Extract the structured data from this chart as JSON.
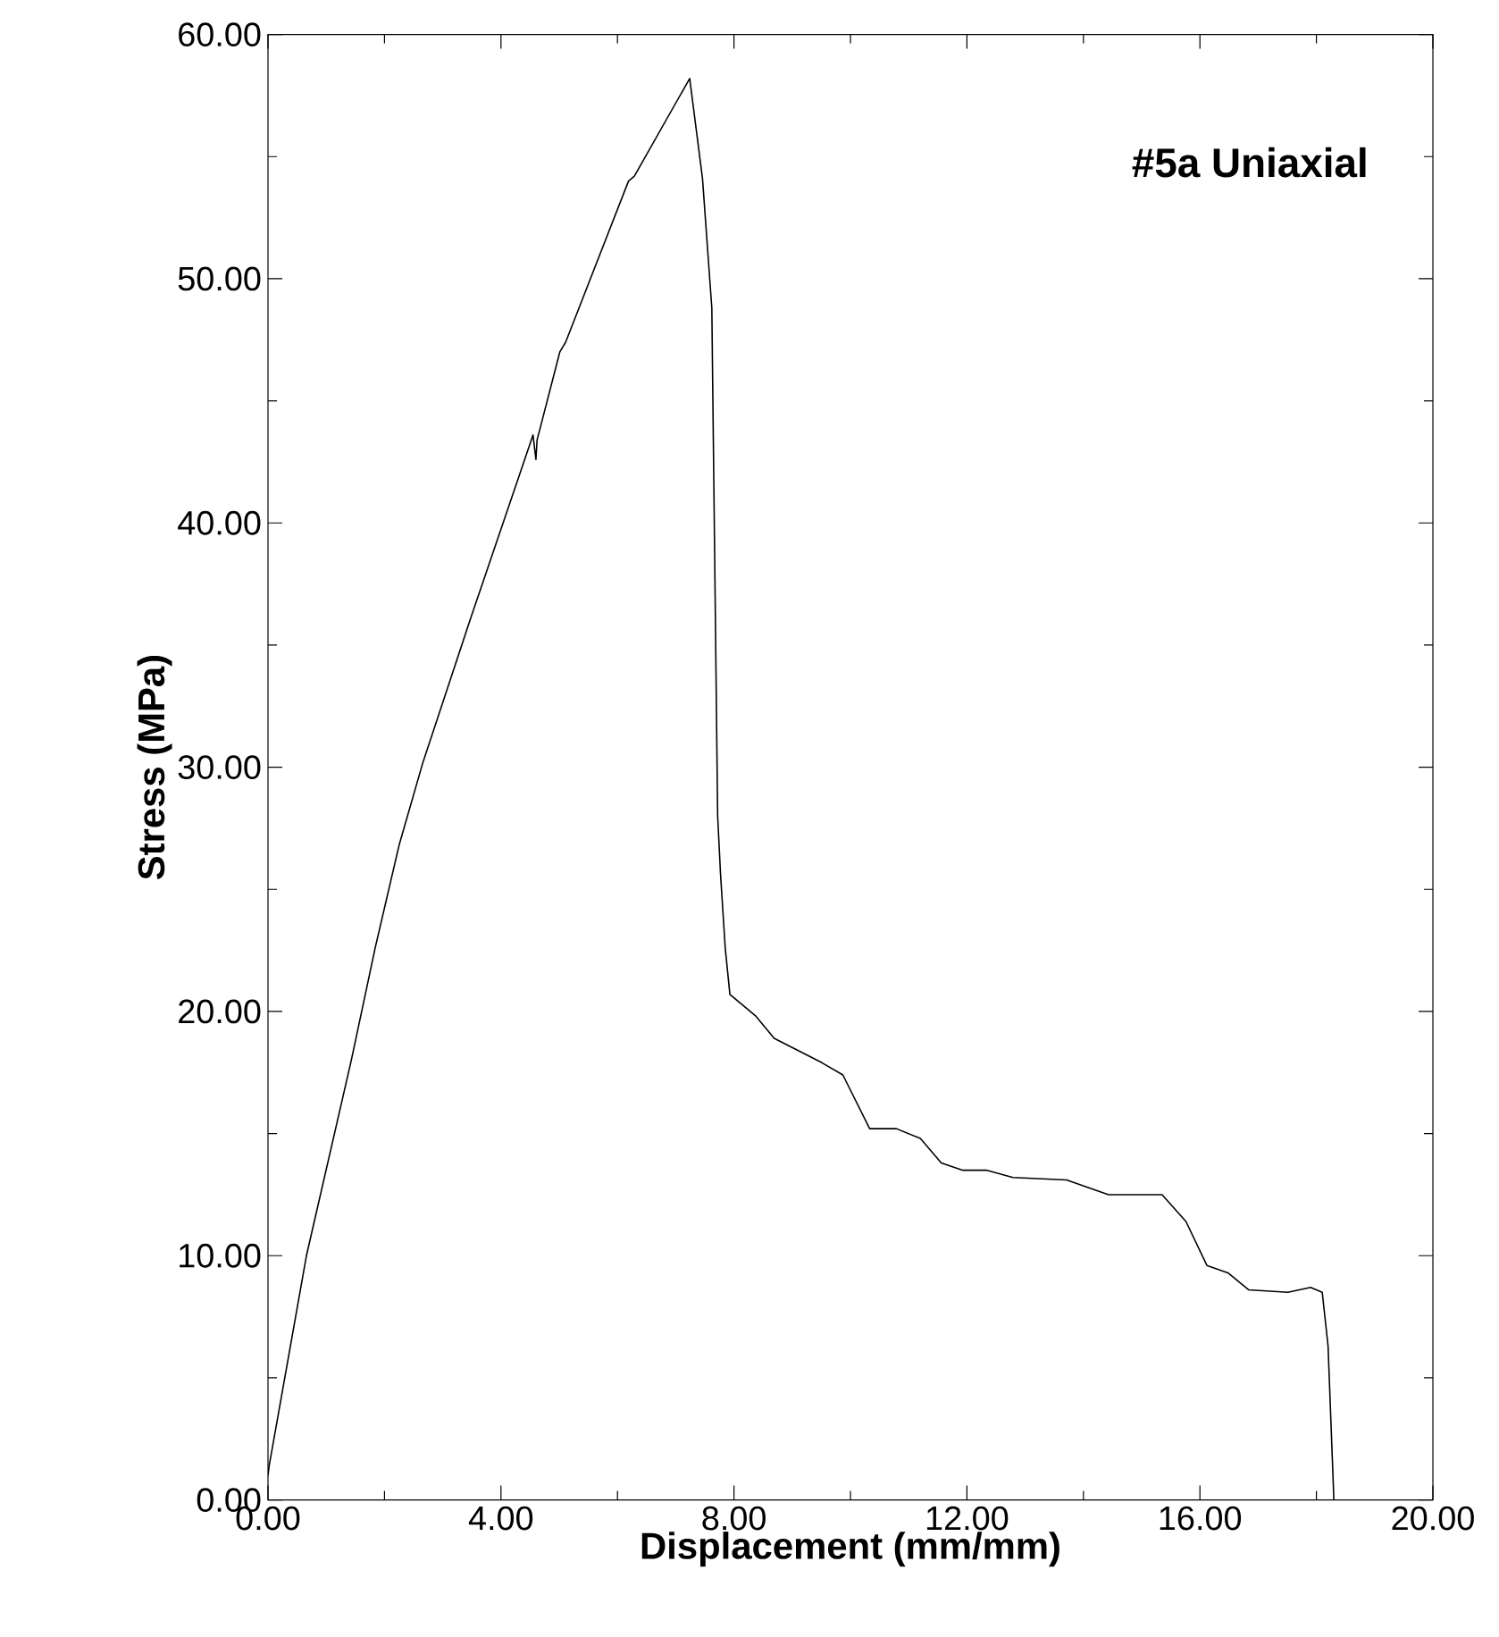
{
  "chart_data": {
    "type": "line",
    "title": "#5a Uniaxial",
    "xlabel": "Displacement (mm/mm)",
    "ylabel": "Stress (MPa)",
    "xlim": [
      0,
      20
    ],
    "ylim": [
      0,
      60
    ],
    "xticks": [
      {
        "value": 0,
        "label": "0.00"
      },
      {
        "value": 2,
        "label": null
      },
      {
        "value": 4,
        "label": "4.00"
      },
      {
        "value": 6,
        "label": null
      },
      {
        "value": 8,
        "label": "8.00"
      },
      {
        "value": 10,
        "label": null
      },
      {
        "value": 12,
        "label": "12.00"
      },
      {
        "value": 14,
        "label": null
      },
      {
        "value": 16,
        "label": "16.00"
      },
      {
        "value": 18,
        "label": null
      },
      {
        "value": 20,
        "label": "20.00"
      }
    ],
    "yticks": [
      {
        "value": 0,
        "label": "0.00"
      },
      {
        "value": 5,
        "label": null
      },
      {
        "value": 10,
        "label": "10.00"
      },
      {
        "value": 15,
        "label": null
      },
      {
        "value": 20,
        "label": "20.00"
      },
      {
        "value": 25,
        "label": null
      },
      {
        "value": 30,
        "label": "30.00"
      },
      {
        "value": 35,
        "label": null
      },
      {
        "value": 40,
        "label": "40.00"
      },
      {
        "value": 45,
        "label": null
      },
      {
        "value": 50,
        "label": "50.00"
      },
      {
        "value": 55,
        "label": null
      },
      {
        "value": 60,
        "label": "60.00"
      }
    ],
    "grid": false,
    "marker": "none",
    "line_style": "solid",
    "series": [
      {
        "color": "#000000",
        "x": [
          0,
          0.02,
          0.66,
          1.43,
          1.84,
          2.25,
          2.66,
          3.48,
          4.55,
          4.6,
          4.62,
          5.01,
          5.11,
          6.19,
          6.29,
          7.24,
          7.46,
          7.62,
          7.72,
          7.77,
          7.85,
          7.93,
          8.38,
          8.69,
          9.51,
          9.87,
          10.33,
          10.79,
          11.2,
          11.56,
          11.92,
          12.33,
          12.79,
          13.71,
          14.43,
          15.35,
          15.76,
          16.12,
          16.48,
          16.84,
          17.51,
          17.9,
          18.1,
          18.2,
          18.3
        ],
        "values": [
          1.0,
          1.4,
          10.0,
          18.0,
          22.6,
          26.8,
          30.2,
          36.1,
          43.6,
          42.6,
          43.4,
          47.0,
          47.4,
          54.0,
          54.2,
          58.2,
          54.1,
          48.8,
          28.0,
          25.6,
          22.6,
          20.7,
          19.8,
          18.9,
          17.9,
          17.4,
          15.2,
          15.2,
          14.8,
          13.8,
          13.5,
          13.5,
          13.2,
          13.1,
          12.5,
          12.5,
          11.4,
          9.6,
          9.3,
          8.6,
          8.5,
          8.7,
          8.5,
          6.3,
          0
        ]
      }
    ]
  }
}
